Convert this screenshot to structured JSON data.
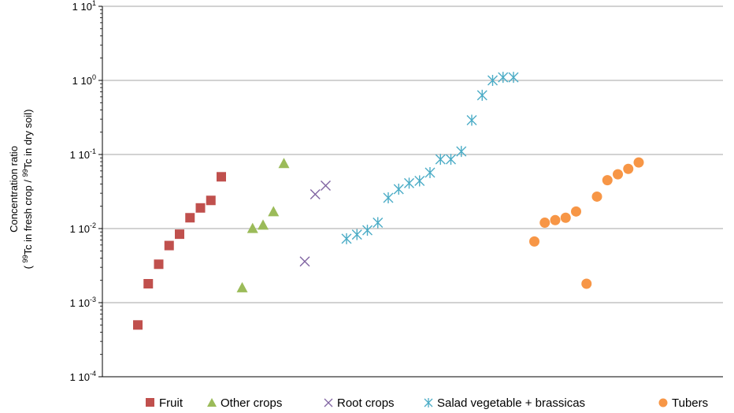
{
  "chart_data": {
    "type": "scatter",
    "y_scale": "log",
    "ylim": [
      0.0001,
      10
    ],
    "grid": true,
    "legend_position": "bottom",
    "ylabel_line1": "Concentration ratio",
    "ylabel_line2": {
      "open": "( ",
      "sup1": "99",
      "mid": "Tc in fresh crop / ",
      "sup2": "99",
      "end": "Tc in dry soil)"
    },
    "y_ticks": [
      {
        "value": 10,
        "base": "1 10",
        "exp": "1"
      },
      {
        "value": 1,
        "base": "1 10",
        "exp": "0"
      },
      {
        "value": 0.1,
        "base": "1 10",
        "exp": "-1"
      },
      {
        "value": 0.01,
        "base": "1 10",
        "exp": "-2"
      },
      {
        "value": 0.001,
        "base": "1 10",
        "exp": "-3"
      },
      {
        "value": 0.0001,
        "base": "1 10",
        "exp": "-4"
      }
    ],
    "series": [
      {
        "name": "Fruit",
        "marker": "square",
        "color": "#c0504d",
        "points": [
          [
            1,
            0.0005
          ],
          [
            2,
            0.0018
          ],
          [
            3,
            0.0033
          ],
          [
            4,
            0.0059
          ],
          [
            5,
            0.0084
          ],
          [
            6,
            0.014
          ],
          [
            7,
            0.019
          ],
          [
            8,
            0.024
          ],
          [
            9,
            0.05
          ]
        ]
      },
      {
        "name": "Other crops",
        "marker": "triangle",
        "color": "#9bbb59",
        "points": [
          [
            11,
            0.0016
          ],
          [
            12,
            0.0101
          ],
          [
            13,
            0.0112
          ],
          [
            14,
            0.017
          ],
          [
            15,
            0.076
          ]
        ]
      },
      {
        "name": "Root crops",
        "marker": "x",
        "color": "#8064a2",
        "points": [
          [
            17,
            0.0036
          ],
          [
            18,
            0.029
          ],
          [
            19,
            0.038
          ]
        ]
      },
      {
        "name": "Salad vegetable + brassicas",
        "marker": "star",
        "color": "#4bacc6",
        "points": [
          [
            21,
            0.0073
          ],
          [
            22,
            0.0083
          ],
          [
            23,
            0.0095
          ],
          [
            24,
            0.012
          ],
          [
            25,
            0.026
          ],
          [
            26,
            0.034
          ],
          [
            27,
            0.041
          ],
          [
            28,
            0.044
          ],
          [
            29,
            0.057
          ],
          [
            30,
            0.086
          ],
          [
            31,
            0.086
          ],
          [
            32,
            0.11
          ],
          [
            33,
            0.29
          ],
          [
            34,
            0.63
          ],
          [
            35,
            1.0
          ],
          [
            36,
            1.1
          ],
          [
            37,
            1.1
          ]
        ]
      },
      {
        "name": "Tubers",
        "marker": "circle",
        "color": "#f79646",
        "points": [
          [
            39,
            0.0067
          ],
          [
            40,
            0.012
          ],
          [
            41,
            0.013
          ],
          [
            42,
            0.014
          ],
          [
            43,
            0.017
          ],
          [
            44,
            0.0018
          ],
          [
            45,
            0.027
          ],
          [
            46,
            0.045
          ],
          [
            47,
            0.054
          ],
          [
            48,
            0.064
          ],
          [
            49,
            0.078
          ]
        ]
      }
    ]
  }
}
